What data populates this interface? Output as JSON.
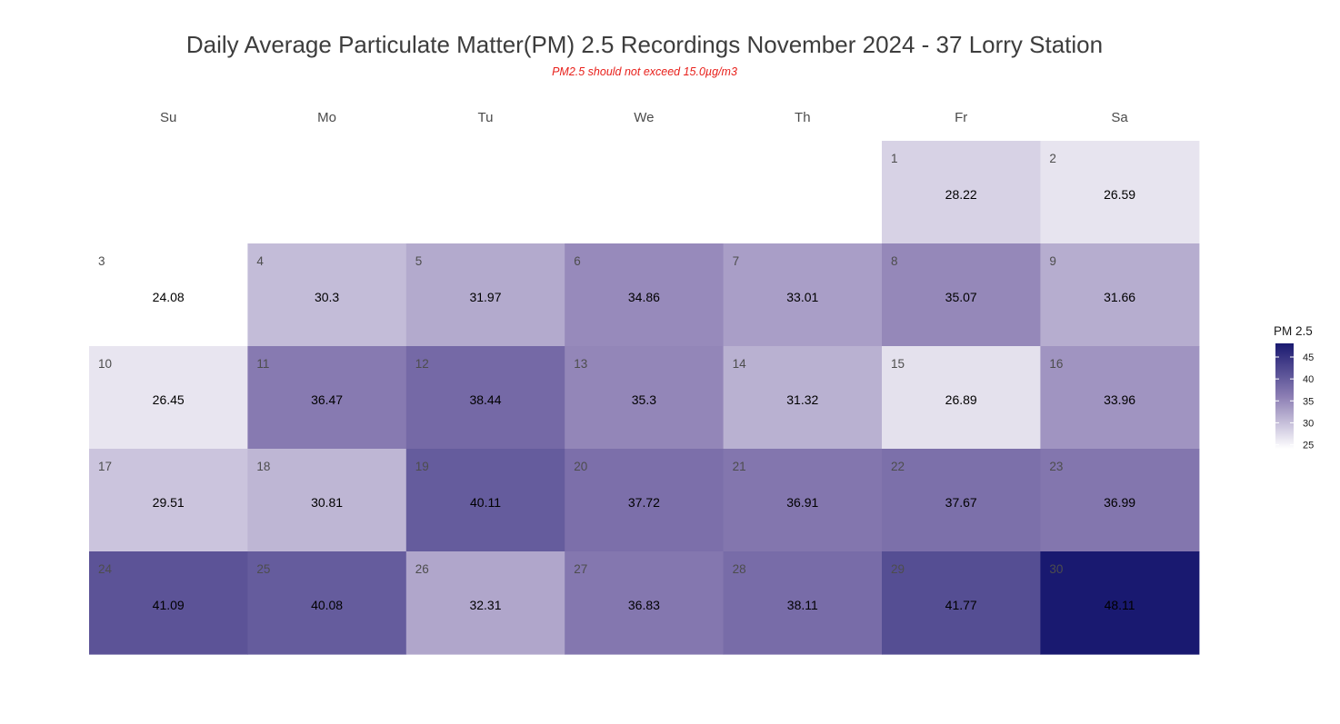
{
  "chart_data": {
    "type": "heatmap",
    "title": "Daily Average Particulate Matter(PM) 2.5 Recordings November 2024 -  37 Lorry Station",
    "subtitle": "PM2.5 should not exceed 15.0µg/m3",
    "weekdays": [
      "Su",
      "Mo",
      "Tu",
      "We",
      "Th",
      "Fr",
      "Sa"
    ],
    "first_weekday_index": 5,
    "days": [
      {
        "day": 1,
        "value": 28.22,
        "label": "28.22"
      },
      {
        "day": 2,
        "value": 26.59,
        "label": "26.59"
      },
      {
        "day": 3,
        "value": 24.08,
        "label": "24.08"
      },
      {
        "day": 4,
        "value": 30.3,
        "label": "30.3"
      },
      {
        "day": 5,
        "value": 31.97,
        "label": "31.97"
      },
      {
        "day": 6,
        "value": 34.86,
        "label": "34.86"
      },
      {
        "day": 7,
        "value": 33.01,
        "label": "33.01"
      },
      {
        "day": 8,
        "value": 35.07,
        "label": "35.07"
      },
      {
        "day": 9,
        "value": 31.66,
        "label": "31.66"
      },
      {
        "day": 10,
        "value": 26.45,
        "label": "26.45"
      },
      {
        "day": 11,
        "value": 36.47,
        "label": "36.47"
      },
      {
        "day": 12,
        "value": 38.44,
        "label": "38.44"
      },
      {
        "day": 13,
        "value": 35.3,
        "label": "35.3"
      },
      {
        "day": 14,
        "value": 31.32,
        "label": "31.32"
      },
      {
        "day": 15,
        "value": 26.89,
        "label": "26.89"
      },
      {
        "day": 16,
        "value": 33.96,
        "label": "33.96"
      },
      {
        "day": 17,
        "value": 29.51,
        "label": "29.51"
      },
      {
        "day": 18,
        "value": 30.81,
        "label": "30.81"
      },
      {
        "day": 19,
        "value": 40.11,
        "label": "40.11"
      },
      {
        "day": 20,
        "value": 37.72,
        "label": "37.72"
      },
      {
        "day": 21,
        "value": 36.91,
        "label": "36.91"
      },
      {
        "day": 22,
        "value": 37.67,
        "label": "37.67"
      },
      {
        "day": 23,
        "value": 36.99,
        "label": "36.99"
      },
      {
        "day": 24,
        "value": 41.09,
        "label": "41.09"
      },
      {
        "day": 25,
        "value": 40.08,
        "label": "40.08"
      },
      {
        "day": 26,
        "value": 32.31,
        "label": "32.31"
      },
      {
        "day": 27,
        "value": 36.83,
        "label": "36.83"
      },
      {
        "day": 28,
        "value": 38.11,
        "label": "38.11"
      },
      {
        "day": 29,
        "value": 41.77,
        "label": "41.77"
      },
      {
        "day": 30,
        "value": 48.11,
        "label": "48.11"
      }
    ],
    "legend": {
      "title": "PM 2.5",
      "ticks": [
        25,
        30,
        35,
        40,
        45
      ],
      "range": [
        24.08,
        48.11
      ]
    },
    "colors": {
      "low": "#ffffff",
      "mid": "#8b7db3",
      "high": "#191970",
      "title": "#3d3d3d",
      "subtitle": "#e8201b"
    }
  }
}
